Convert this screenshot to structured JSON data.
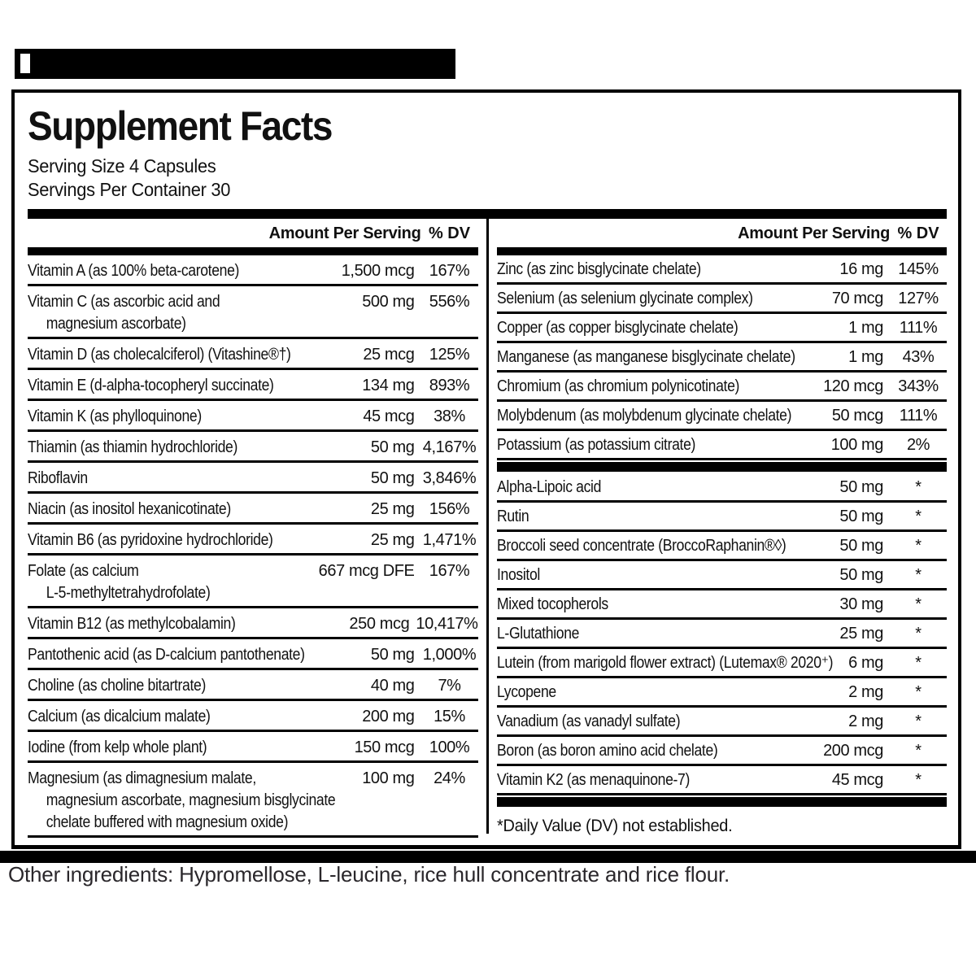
{
  "panel": {
    "title": "Supplement Facts",
    "serving_size": "Serving Size 4 Capsules",
    "servings_per_container": "Servings Per Container 30",
    "amount_header": "Amount Per Serving",
    "dv_header": "% DV"
  },
  "left_rows": [
    {
      "name": "Vitamin A (as 100% beta-carotene)",
      "amount": "1,500 mcg",
      "dv": "167%"
    },
    {
      "name": "Vitamin C (as ascorbic acid and\n     magnesium ascorbate)",
      "amount": "500 mg",
      "dv": "556%"
    },
    {
      "name": "Vitamin D (as cholecalciferol) (Vitashine®†)",
      "amount": "25 mcg",
      "dv": "125%"
    },
    {
      "name": "Vitamin E (d-alpha-tocopheryl succinate)",
      "amount": "134 mg",
      "dv": "893%"
    },
    {
      "name": "Vitamin K (as phylloquinone)",
      "amount": "45 mcg",
      "dv": "38%"
    },
    {
      "name": "Thiamin (as thiamin hydrochloride)",
      "amount": "50 mg",
      "dv": "4,167%"
    },
    {
      "name": "Riboflavin",
      "amount": "50 mg",
      "dv": "3,846%"
    },
    {
      "name": "Niacin (as inositol hexanicotinate)",
      "amount": "25 mg",
      "dv": "156%"
    },
    {
      "name": "Vitamin B6 (as pyridoxine hydrochloride)",
      "amount": "25 mg",
      "dv": "1,471%"
    },
    {
      "name": "Folate (as calcium\n     L-5-methyltetrahydrofolate)",
      "amount": "667 mcg DFE",
      "dv": "167%"
    },
    {
      "name": "Vitamin B12 (as methylcobalamin)",
      "amount": "250 mcg",
      "dv": "10,417%"
    },
    {
      "name": "Pantothenic acid (as D-calcium pantothenate)",
      "amount": "50 mg",
      "dv": "1,000%"
    },
    {
      "name": "Choline (as choline bitartrate)",
      "amount": "40 mg",
      "dv": "7%"
    },
    {
      "name": "Calcium (as dicalcium malate)",
      "amount": "200 mg",
      "dv": "15%"
    },
    {
      "name": "Iodine (from kelp whole plant)",
      "amount": "150 mcg",
      "dv": "100%"
    },
    {
      "name": "Magnesium (as dimagnesium malate,\n     magnesium ascorbate, magnesium bisglycinate\n     chelate buffered with magnesium oxide)",
      "amount": "100 mg",
      "dv": "24%"
    }
  ],
  "right_rows_minerals": [
    {
      "name": "Zinc (as zinc bisglycinate chelate)",
      "amount": "16 mg",
      "dv": "145%"
    },
    {
      "name": "Selenium (as selenium glycinate complex)",
      "amount": "70 mcg",
      "dv": "127%"
    },
    {
      "name": "Copper (as copper bisglycinate chelate)",
      "amount": "1 mg",
      "dv": "111%"
    },
    {
      "name": "Manganese (as manganese bisglycinate chelate)",
      "amount": "1 mg",
      "dv": "43%"
    },
    {
      "name": "Chromium (as chromium polynicotinate)",
      "amount": "120 mcg",
      "dv": "343%"
    },
    {
      "name": "Molybdenum (as molybdenum glycinate chelate)",
      "amount": "50 mcg",
      "dv": "111%"
    },
    {
      "name": "Potassium (as potassium citrate)",
      "amount": "100 mg",
      "dv": "2%"
    }
  ],
  "right_rows_botanicals": [
    {
      "name": "Alpha-Lipoic acid",
      "amount": "50 mg",
      "dv": "*"
    },
    {
      "name": "Rutin",
      "amount": "50 mg",
      "dv": "*"
    },
    {
      "name": "Broccoli seed concentrate (BroccoRaphanin®◊)",
      "amount": "50 mg",
      "dv": "*"
    },
    {
      "name": "Inositol",
      "amount": "50 mg",
      "dv": "*"
    },
    {
      "name": "Mixed tocopherols",
      "amount": "30 mg",
      "dv": "*"
    },
    {
      "name": "L-Glutathione",
      "amount": "25 mg",
      "dv": "*"
    },
    {
      "name": "Lutein (from marigold flower extract) (Lutemax® 2020⁺)",
      "amount": "6 mg",
      "dv": "*"
    },
    {
      "name": "Lycopene",
      "amount": "2 mg",
      "dv": "*"
    },
    {
      "name": "Vanadium (as vanadyl sulfate)",
      "amount": "2 mg",
      "dv": "*"
    },
    {
      "name": "Boron (as boron amino acid chelate)",
      "amount": "200 mcg",
      "dv": "*"
    },
    {
      "name": "Vitamin K2 (as menaquinone-7)",
      "amount": "45 mcg",
      "dv": "*"
    }
  ],
  "footnote": "*Daily Value (DV) not established.",
  "other_ingredients": "Other ingredients: Hypromellose, L-leucine, rice hull concentrate and rice flour.",
  "colors": {
    "ink": "#111111",
    "bar": "#000000",
    "ingredients_text": "#2a272b"
  }
}
